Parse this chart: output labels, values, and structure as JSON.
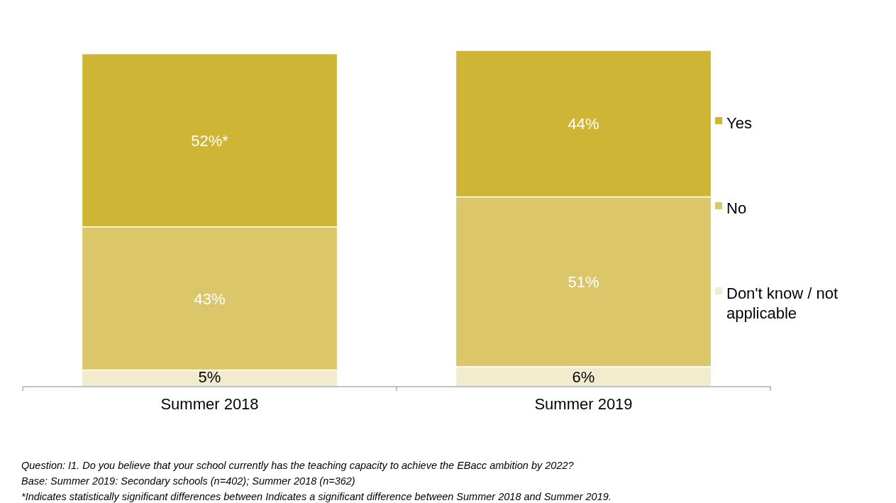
{
  "chart_data": {
    "type": "bar",
    "stacked": true,
    "categories": [
      "Summer 2018",
      "Summer 2019"
    ],
    "series": [
      {
        "name": "Don't know / not applicable",
        "color": "#f3ebcd",
        "values": [
          5,
          6
        ],
        "value_labels": [
          "5%",
          "6%"
        ]
      },
      {
        "name": "No",
        "color": "#dbc76a",
        "values": [
          43,
          51
        ],
        "value_labels": [
          "43%",
          "51%"
        ]
      },
      {
        "name": "Yes",
        "color": "#cfb536",
        "values": [
          52,
          44
        ],
        "value_labels": [
          "52%*",
          "44%"
        ]
      }
    ],
    "legend": "right",
    "annotations": [
      "Question: I1. Do you believe that your school currently has the teaching capacity to achieve the EBacc ambition by 2022?",
      "Base: Summer 2019: Secondary schools (n=402); Summer 2018 (n=362)",
      "*Indicates statistically significant differences between  Indicates a significant difference between Summer 2018 and Summer 2019."
    ]
  }
}
